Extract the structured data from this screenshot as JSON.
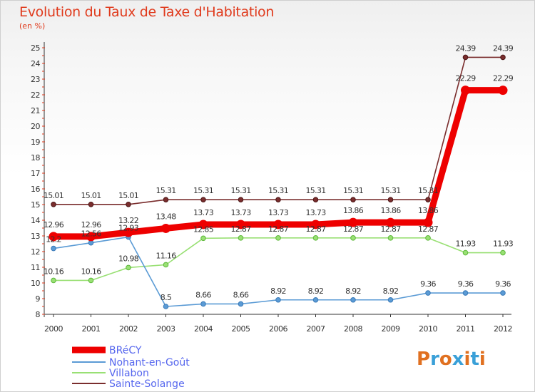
{
  "title": "Evolution du Taux de Taxe d'Habitation",
  "subtitle": "(en %)",
  "logo": {
    "text": "Proxiti",
    "colors": [
      "#e07020",
      "#3aa0d8",
      "#e07020",
      "#3aa0d8",
      "#e07020",
      "#3aa0d8",
      "#e07020"
    ]
  },
  "chart_data": {
    "type": "line",
    "x": [
      "2000",
      "2001",
      "2002",
      "2003",
      "2004",
      "2005",
      "2006",
      "2007",
      "2008",
      "2009",
      "2010",
      "2011",
      "2012"
    ],
    "ylim": [
      8,
      25
    ],
    "yticks": [
      8,
      9,
      10,
      11,
      12,
      13,
      14,
      15,
      16,
      17,
      18,
      19,
      20,
      21,
      22,
      23,
      24,
      25
    ],
    "grid": false,
    "legend_position": "bottom-left",
    "series": [
      {
        "name": "BRéCY",
        "color": "#ee0000",
        "values": [
          12.96,
          12.96,
          13.22,
          13.48,
          13.73,
          13.73,
          13.73,
          13.73,
          13.86,
          13.86,
          13.86,
          22.29,
          22.29
        ],
        "labels": [
          "12.96",
          "12.96",
          "13.22",
          "13.48",
          "13.73",
          "13.73",
          "13.73",
          "13.73",
          "13.86",
          "13.86",
          "13.86",
          "22.29",
          "22.29"
        ]
      },
      {
        "name": "Nohant-en-Goût",
        "color": "#5b9bd5",
        "values": [
          12.2,
          12.56,
          12.93,
          8.5,
          8.66,
          8.66,
          8.92,
          8.92,
          8.92,
          8.92,
          9.36,
          9.36,
          9.36
        ],
        "labels": [
          "12.2",
          "12.56",
          "12.93",
          "8.5",
          "8.66",
          "8.66",
          "8.92",
          "8.92",
          "8.92",
          "8.92",
          "9.36",
          "9.36",
          "9.36"
        ]
      },
      {
        "name": "Villabon",
        "color": "#99e074",
        "values": [
          10.16,
          10.16,
          10.98,
          11.16,
          12.85,
          12.87,
          12.87,
          12.87,
          12.87,
          12.87,
          12.87,
          11.93,
          11.93
        ],
        "labels": [
          "10.16",
          "10.16",
          "10.98",
          "11.16",
          "12.85",
          "12.87",
          "12.87",
          "12.87",
          "12.87",
          "12.87",
          "12.87",
          "11.93",
          "11.93"
        ]
      },
      {
        "name": "Sainte-Solange",
        "color": "#7a2d2d",
        "values": [
          15.01,
          15.01,
          15.01,
          15.31,
          15.31,
          15.31,
          15.31,
          15.31,
          15.31,
          15.31,
          15.31,
          24.39,
          24.39
        ],
        "labels": [
          "15.01",
          "15.01",
          "15.01",
          "15.31",
          "15.31",
          "15.31",
          "15.31",
          "15.31",
          "15.31",
          "15.31",
          "15.31",
          "24.39",
          "24.39"
        ]
      }
    ]
  }
}
